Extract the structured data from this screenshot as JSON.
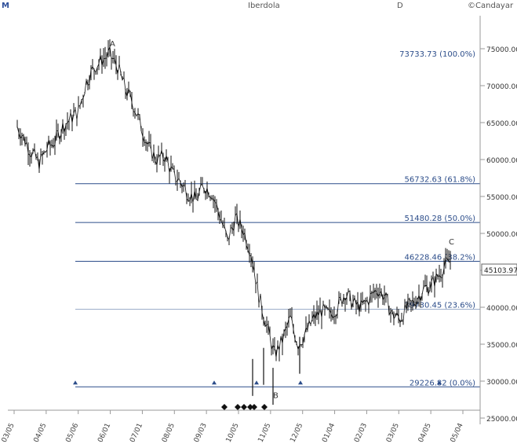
{
  "header": {
    "left": "M",
    "title": "Iberdola",
    "d_label": "D",
    "copyright": "©Candayar"
  },
  "chart_data": {
    "type": "line",
    "title": "",
    "xlabel": "",
    "ylabel": "",
    "ylim": [
      25000,
      78000
    ],
    "y_ticks": [
      25000,
      30000,
      35000,
      40000,
      45000,
      50000,
      55000,
      60000,
      65000,
      70000,
      75000
    ],
    "y_tick_labels": [
      "25000.00",
      "30000.00",
      "35000.00",
      "40000.00",
      "45000.00",
      "50000.00",
      "55000.00",
      "60000.00",
      "65000.00",
      "70000.00",
      "75000.00"
    ],
    "x_tick_labels": [
      "03/05",
      "04/05",
      "05/06",
      "06/01",
      "07/01",
      "08/05",
      "09/03",
      "10/05",
      "11/05",
      "12/05",
      "01/04",
      "02/03",
      "03/05",
      "04/05",
      "05/04"
    ],
    "last_price_label": "45103.97",
    "fib_levels": [
      {
        "value": 73733.73,
        "label": "73733.73 (100.0%)"
      },
      {
        "value": 56732.63,
        "label": "56732.63 (61.8%)"
      },
      {
        "value": 51480.28,
        "label": "51480.28 (50.0%)"
      },
      {
        "value": 46228.46,
        "label": "46228.46 (38.2%)"
      },
      {
        "value": 39730.45,
        "label": "39730.45 (23.6%)"
      },
      {
        "value": 29226.82,
        "label": "29226.82 (0.0%)"
      }
    ],
    "wave_labels": [
      {
        "label": "A",
        "x_index": 140,
        "value": 75300
      },
      {
        "label": "B",
        "x_index": 348,
        "value": 27700
      },
      {
        "label": "C",
        "x_index": 572,
        "value": 48500
      }
    ],
    "series": [
      {
        "values_anchor_x": [
          22,
          30,
          40,
          50,
          60,
          70,
          80,
          90,
          100,
          110,
          120,
          130,
          140,
          150,
          160,
          170,
          180,
          190,
          200,
          210,
          220,
          230,
          240,
          250,
          260,
          270,
          280,
          290,
          300,
          310,
          320,
          330,
          340,
          350,
          360,
          370,
          380,
          390,
          400,
          410,
          420,
          430,
          440,
          450,
          460,
          470,
          480,
          490,
          500,
          510,
          520,
          530,
          540,
          550,
          560,
          570,
          575
        ],
        "values": [
          64500,
          63000,
          61000,
          59500,
          61500,
          62500,
          64500,
          65500,
          66500,
          70500,
          72500,
          73500,
          74200,
          72500,
          69500,
          67500,
          64500,
          61500,
          60000,
          60500,
          58000,
          57000,
          55500,
          54500,
          56500,
          55500,
          52500,
          49000,
          52000,
          50500,
          47500,
          41500,
          37500,
          33500,
          35500,
          38500,
          35000,
          36500,
          38500,
          39500,
          39000,
          40000,
          42000,
          40500,
          40000,
          41000,
          42500,
          41500,
          39000,
          38500,
          40000,
          41000,
          42500,
          43000,
          44500,
          46000,
          46300
        ]
      }
    ],
    "markers_triangle_x_index": [
      96,
      273,
      327,
      383,
      560
    ],
    "markers_diamond_x_index": [
      286,
      303,
      311,
      319,
      324,
      337
    ]
  }
}
